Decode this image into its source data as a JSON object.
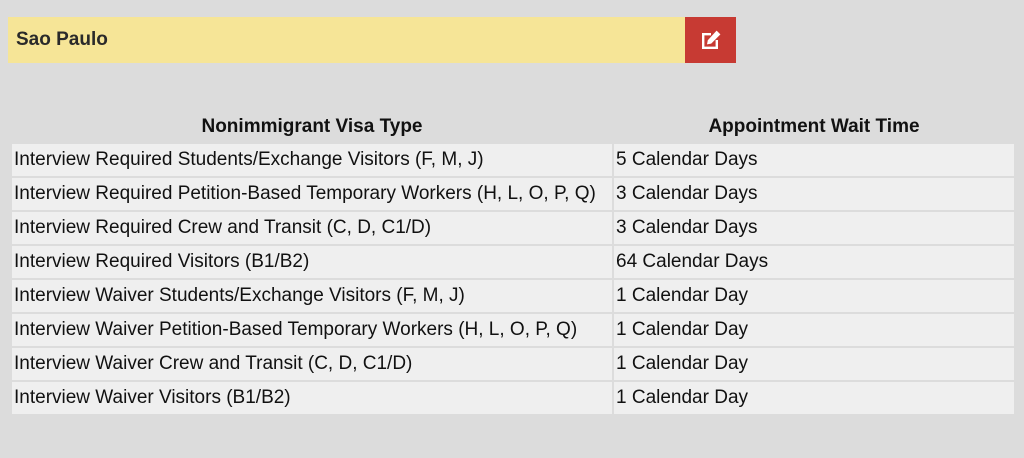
{
  "header": {
    "city": "Sao Paulo",
    "edit_icon": "edit-icon",
    "edit_color": "#c73a33",
    "bar_color": "#f6e597"
  },
  "table": {
    "columns": [
      "Nonimmigrant Visa Type",
      "Appointment Wait Time"
    ],
    "rows": [
      {
        "type": "Interview Required Students/Exchange Visitors (F, M, J)",
        "wait": "5 Calendar Days"
      },
      {
        "type": "Interview Required Petition-Based Temporary Workers (H, L, O, P, Q)",
        "wait": "3 Calendar Days"
      },
      {
        "type": "Interview Required Crew and Transit (C, D, C1/D)",
        "wait": "3 Calendar Days"
      },
      {
        "type": "Interview Required Visitors (B1/B2)",
        "wait": "64 Calendar Days"
      },
      {
        "type": "Interview Waiver Students/Exchange Visitors (F, M, J)",
        "wait": "1 Calendar Day"
      },
      {
        "type": "Interview Waiver Petition-Based Temporary Workers (H, L, O, P, Q)",
        "wait": "1 Calendar Day"
      },
      {
        "type": "Interview Waiver Crew and Transit (C, D, C1/D)",
        "wait": "1 Calendar Day"
      },
      {
        "type": "Interview Waiver Visitors (B1/B2)",
        "wait": "1 Calendar Day"
      }
    ]
  }
}
